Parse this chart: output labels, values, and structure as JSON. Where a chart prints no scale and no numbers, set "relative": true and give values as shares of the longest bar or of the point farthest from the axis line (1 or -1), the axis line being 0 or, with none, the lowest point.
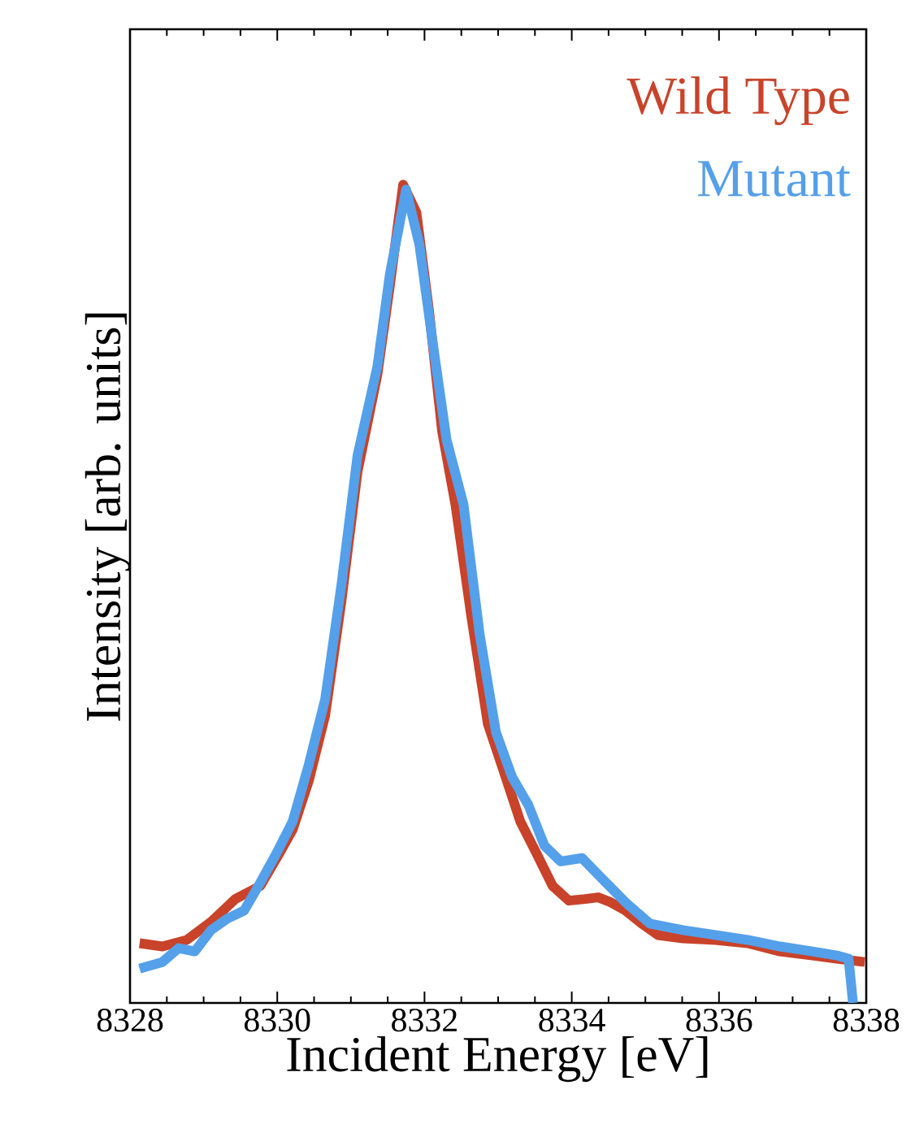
{
  "chart_data": {
    "type": "line",
    "relative": true,
    "xlabel": "Incident Energy [eV]",
    "ylabel": "Intensity [arb. units]",
    "xlim": [
      8328,
      8338
    ],
    "xticks": [
      8328,
      8330,
      8332,
      8334,
      8336,
      8338
    ],
    "series": [
      {
        "name": "Wild Type",
        "color": "#c8432a",
        "x": [
          8328.13,
          8328.44,
          8328.77,
          8329.1,
          8329.43,
          8329.77,
          8330.03,
          8330.21,
          8330.43,
          8330.65,
          8330.87,
          8331.09,
          8331.36,
          8331.53,
          8331.71,
          8331.89,
          8332.06,
          8332.24,
          8332.42,
          8332.64,
          8332.86,
          8333.08,
          8333.3,
          8333.52,
          8333.74,
          8333.96,
          8334.18,
          8334.36,
          8334.53,
          8334.73,
          8334.95,
          8335.17,
          8335.51,
          8335.95,
          8336.39,
          8336.83,
          8337.27,
          8337.6,
          8337.98
        ],
        "values": [
          0.073,
          0.069,
          0.077,
          0.099,
          0.127,
          0.143,
          0.183,
          0.212,
          0.272,
          0.351,
          0.49,
          0.649,
          0.768,
          0.877,
          1.0,
          0.966,
          0.847,
          0.698,
          0.609,
          0.47,
          0.341,
          0.282,
          0.222,
          0.183,
          0.143,
          0.125,
          0.127,
          0.129,
          0.123,
          0.113,
          0.097,
          0.083,
          0.079,
          0.077,
          0.073,
          0.063,
          0.058,
          0.054,
          0.05
        ]
      },
      {
        "name": "Mutant",
        "color": "#55a0ea",
        "x": [
          8328.13,
          8328.44,
          8328.66,
          8328.88,
          8329.1,
          8329.32,
          8329.55,
          8329.77,
          8329.99,
          8330.21,
          8330.43,
          8330.65,
          8330.87,
          8331.09,
          8331.36,
          8331.53,
          8331.75,
          8331.93,
          8332.11,
          8332.3,
          8332.53,
          8332.75,
          8332.97,
          8333.19,
          8333.41,
          8333.63,
          8333.85,
          8334.14,
          8334.4,
          8334.73,
          8335.06,
          8335.51,
          8335.95,
          8336.39,
          8336.83,
          8337.27,
          8337.6,
          8337.76,
          8337.82
        ],
        "values": [
          0.042,
          0.05,
          0.067,
          0.063,
          0.089,
          0.103,
          0.113,
          0.147,
          0.183,
          0.222,
          0.292,
          0.371,
          0.51,
          0.669,
          0.778,
          0.891,
          0.994,
          0.927,
          0.808,
          0.688,
          0.609,
          0.45,
          0.331,
          0.276,
          0.242,
          0.192,
          0.173,
          0.177,
          0.153,
          0.123,
          0.097,
          0.089,
          0.083,
          0.077,
          0.069,
          0.063,
          0.058,
          0.054,
          0.0
        ]
      }
    ]
  }
}
